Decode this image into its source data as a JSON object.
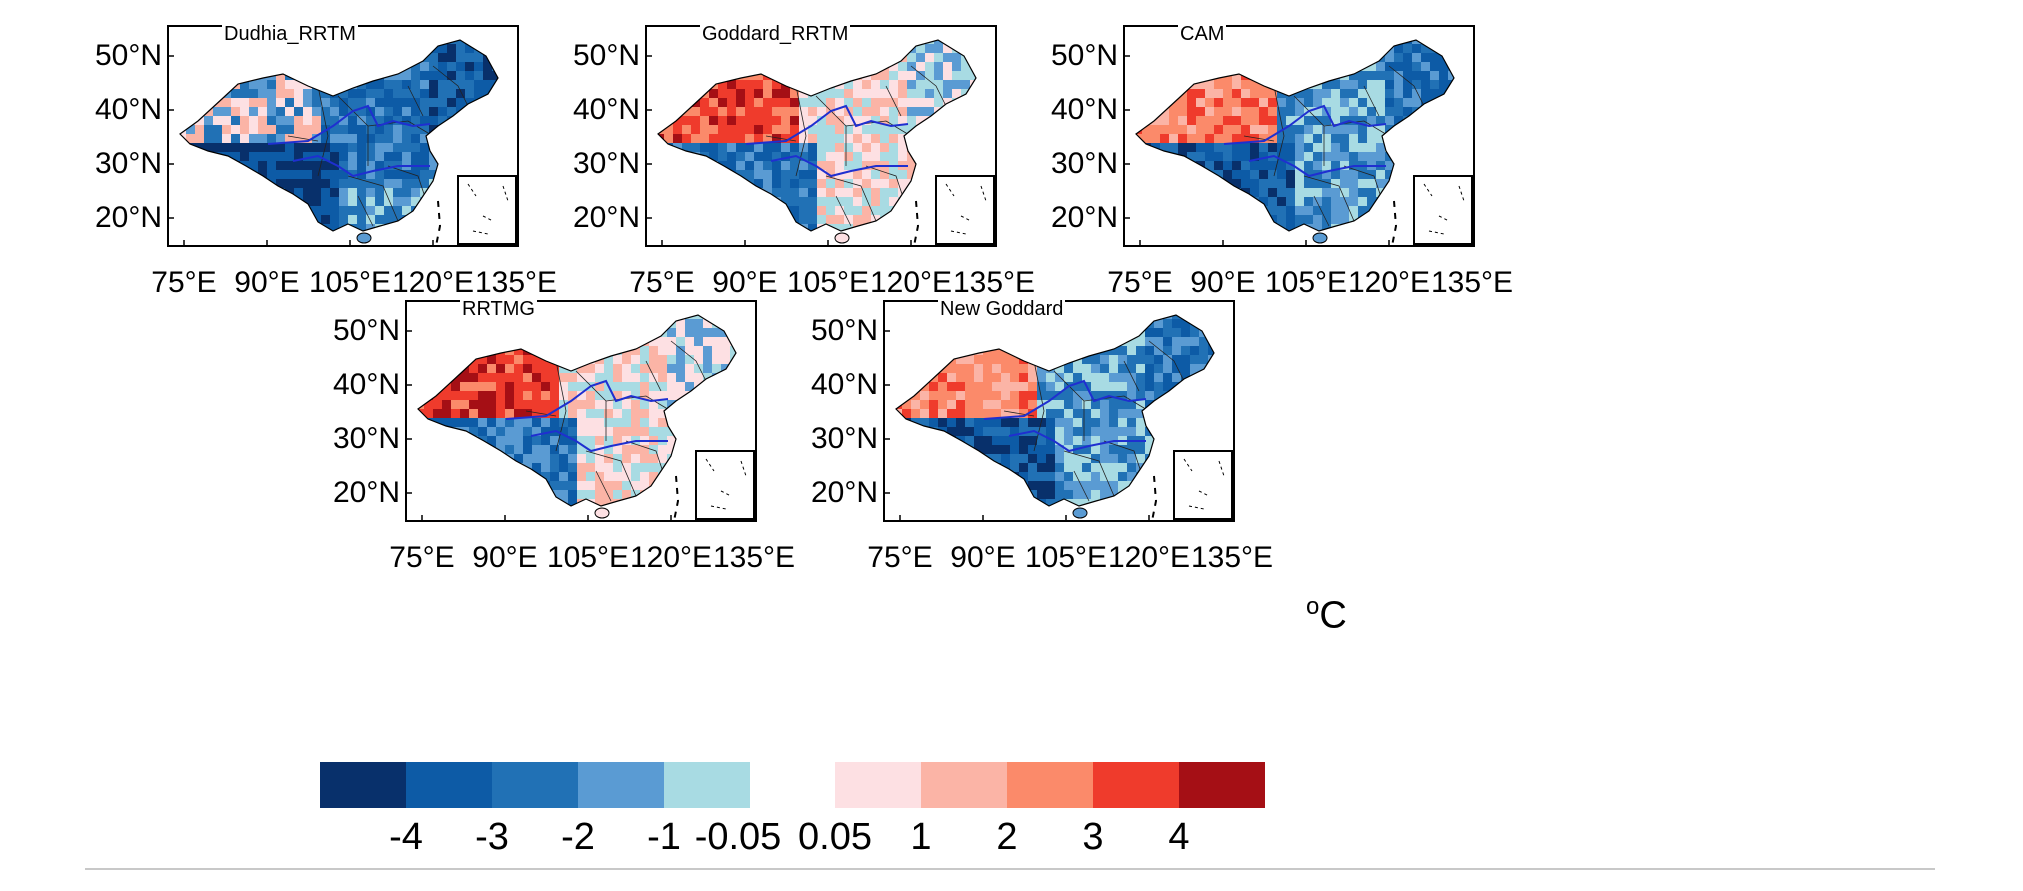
{
  "figure": {
    "panels": [
      {
        "title": "Dudhia_RRTM",
        "style": "cold"
      },
      {
        "title": "Goddard_RRTM",
        "style": "warm"
      },
      {
        "title": "CAM",
        "style": "mixed"
      },
      {
        "title": "RRTMG",
        "style": "warm"
      },
      {
        "title": "New Goddard",
        "style": "mixed"
      }
    ],
    "lat_ticks": [
      "50°N",
      "40°N",
      "30°N",
      "20°N"
    ],
    "lon_ticks": [
      "75°E",
      "90°E",
      "105°E",
      "120°E",
      "135°E"
    ],
    "colorbar": {
      "unit": "C",
      "unit_prefix": "o",
      "negative_labels": [
        "-4",
        "-3",
        "-2",
        "-1",
        "-0.05"
      ],
      "positive_labels": [
        "0.05",
        "1",
        "2",
        "3",
        "4"
      ],
      "negative_colors": [
        "#08306b",
        "#0d5ba6",
        "#2171b5",
        "#5a9bd3",
        "#a8dbe3"
      ],
      "positive_colors": [
        "#fde0e3",
        "#fbb4a6",
        "#fb8a6a",
        "#ef3b2c",
        "#a50f15"
      ]
    }
  }
}
